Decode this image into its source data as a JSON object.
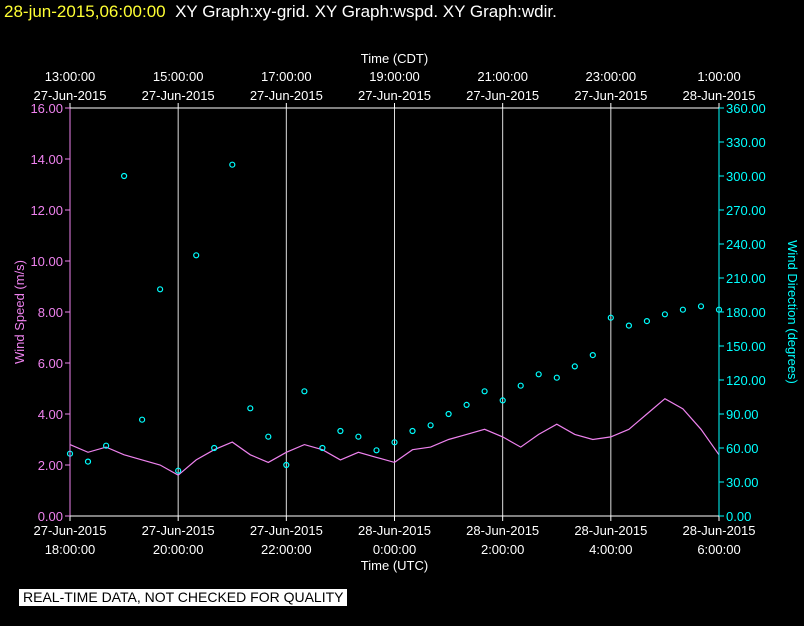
{
  "header": {
    "timestamp": "28-jun-2015,06:00:00",
    "graphs": "XY Graph:xy-grid.  XY Graph:wspd.  XY Graph:wdir."
  },
  "footer": {
    "notice": "REAL-TIME DATA, NOT CHECKED FOR QUALITY"
  },
  "colors": {
    "background": "#000000",
    "axis": "#ffffff",
    "grid": "#dddddd",
    "wind_speed": "#ee82ee",
    "wind_direction": "#00ffff",
    "timestamp": "#ffff33"
  },
  "chart_data": {
    "type": "line+scatter",
    "top_axis": {
      "title": "Time (CDT)",
      "ticks": [
        {
          "time": "13:00:00",
          "date": "27-Jun-2015"
        },
        {
          "time": "15:00:00",
          "date": "27-Jun-2015"
        },
        {
          "time": "17:00:00",
          "date": "27-Jun-2015"
        },
        {
          "time": "19:00:00",
          "date": "27-Jun-2015"
        },
        {
          "time": "21:00:00",
          "date": "27-Jun-2015"
        },
        {
          "time": "23:00:00",
          "date": "27-Jun-2015"
        },
        {
          "time": "1:00:00",
          "date": "28-Jun-2015"
        }
      ]
    },
    "bottom_axis": {
      "title": "Time (UTC)",
      "ticks": [
        {
          "date": "27-Jun-2015",
          "time": "18:00:00"
        },
        {
          "date": "27-Jun-2015",
          "time": "20:00:00"
        },
        {
          "date": "27-Jun-2015",
          "time": "22:00:00"
        },
        {
          "date": "28-Jun-2015",
          "time": "0:00:00"
        },
        {
          "date": "28-Jun-2015",
          "time": "2:00:00"
        },
        {
          "date": "28-Jun-2015",
          "time": "4:00:00"
        },
        {
          "date": "28-Jun-2015",
          "time": "6:00:00"
        }
      ],
      "range_utc": [
        "2015-06-27 18:00:00",
        "2015-06-28 06:00:00"
      ]
    },
    "left_axis": {
      "title": "Wind Speed (m/s)",
      "ylim": [
        0,
        16
      ],
      "tick_labels": [
        "0.00",
        "2.00",
        "4.00",
        "6.00",
        "8.00",
        "10.00",
        "12.00",
        "14.00",
        "16.00"
      ]
    },
    "right_axis": {
      "title": "Wind Direction (degrees)",
      "ylim": [
        0,
        360
      ],
      "tick_labels": [
        "0.00",
        "30.00",
        "60.00",
        "90.00",
        "120.00",
        "150.00",
        "180.00",
        "210.00",
        "240.00",
        "270.00",
        "300.00",
        "330.00",
        "360.00"
      ]
    },
    "grid": {
      "vertical": true,
      "horizontal": false
    },
    "series": [
      {
        "key": "wspd",
        "type": "line",
        "axis": "left",
        "x_utc": [
          "2015-06-27 18:00:00",
          "2015-06-27 18:20:00",
          "2015-06-27 18:40:00",
          "2015-06-27 19:00:00",
          "2015-06-27 19:20:00",
          "2015-06-27 19:40:00",
          "2015-06-27 20:00:00",
          "2015-06-27 20:20:00",
          "2015-06-27 20:40:00",
          "2015-06-27 21:00:00",
          "2015-06-27 21:20:00",
          "2015-06-27 21:40:00",
          "2015-06-27 22:00:00",
          "2015-06-27 22:20:00",
          "2015-06-27 22:40:00",
          "2015-06-27 23:00:00",
          "2015-06-27 23:20:00",
          "2015-06-27 23:40:00",
          "2015-06-28 00:00:00",
          "2015-06-28 00:20:00",
          "2015-06-28 00:40:00",
          "2015-06-28 01:00:00",
          "2015-06-28 01:20:00",
          "2015-06-28 01:40:00",
          "2015-06-28 02:00:00",
          "2015-06-28 02:20:00",
          "2015-06-28 02:40:00",
          "2015-06-28 03:00:00",
          "2015-06-28 03:20:00",
          "2015-06-28 03:40:00",
          "2015-06-28 04:00:00",
          "2015-06-28 04:20:00",
          "2015-06-28 04:40:00",
          "2015-06-28 05:00:00",
          "2015-06-28 05:20:00",
          "2015-06-28 05:40:00",
          "2015-06-28 06:00:00"
        ],
        "values": [
          2.8,
          2.5,
          2.7,
          2.4,
          2.2,
          2.0,
          1.6,
          2.2,
          2.6,
          2.9,
          2.4,
          2.1,
          2.5,
          2.8,
          2.6,
          2.2,
          2.5,
          2.3,
          2.1,
          2.6,
          2.7,
          3.0,
          3.2,
          3.4,
          3.1,
          2.7,
          3.2,
          3.6,
          3.2,
          3.0,
          3.1,
          3.4,
          4.0,
          4.6,
          4.2,
          3.4,
          2.4
        ]
      },
      {
        "key": "wdir",
        "type": "scatter",
        "axis": "right",
        "x_utc": [
          "2015-06-27 18:00:00",
          "2015-06-27 18:20:00",
          "2015-06-27 18:40:00",
          "2015-06-27 19:00:00",
          "2015-06-27 19:20:00",
          "2015-06-27 19:40:00",
          "2015-06-27 20:00:00",
          "2015-06-27 20:20:00",
          "2015-06-27 20:40:00",
          "2015-06-27 21:00:00",
          "2015-06-27 21:20:00",
          "2015-06-27 21:40:00",
          "2015-06-27 22:00:00",
          "2015-06-27 22:20:00",
          "2015-06-27 22:40:00",
          "2015-06-27 23:00:00",
          "2015-06-27 23:20:00",
          "2015-06-27 23:40:00",
          "2015-06-28 00:00:00",
          "2015-06-28 00:20:00",
          "2015-06-28 00:40:00",
          "2015-06-28 01:00:00",
          "2015-06-28 01:20:00",
          "2015-06-28 01:40:00",
          "2015-06-28 02:00:00",
          "2015-06-28 02:20:00",
          "2015-06-28 02:40:00",
          "2015-06-28 03:00:00",
          "2015-06-28 03:20:00",
          "2015-06-28 03:40:00",
          "2015-06-28 04:00:00",
          "2015-06-28 04:20:00",
          "2015-06-28 04:40:00",
          "2015-06-28 05:00:00",
          "2015-06-28 05:20:00",
          "2015-06-28 05:40:00",
          "2015-06-28 06:00:00"
        ],
        "values": [
          55,
          48,
          62,
          300,
          85,
          200,
          40,
          230,
          60,
          310,
          95,
          70,
          45,
          110,
          60,
          75,
          70,
          58,
          65,
          75,
          80,
          90,
          98,
          110,
          102,
          115,
          125,
          122,
          132,
          142,
          175,
          168,
          172,
          178,
          182,
          185,
          182
        ]
      }
    ]
  }
}
